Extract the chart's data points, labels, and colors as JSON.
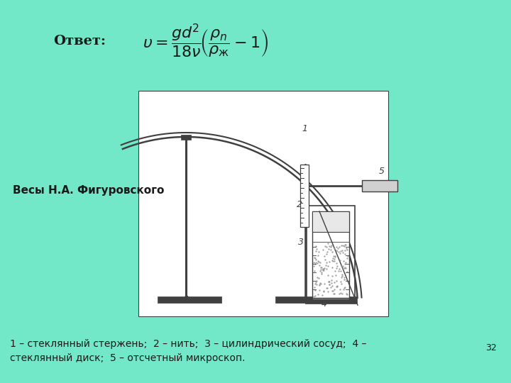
{
  "bg_color": "#72e8c8",
  "title_text": "Ответ:",
  "label_left": "Весы Н.А. Фигуровского",
  "caption_line1": "1 – стеклянный стержень;  2 – нить;  3 – цилиндрический сосуд;  4 –",
  "caption_line2": "стеклянный диск;  5 – отсчетный микроскоп.",
  "page_number": "32",
  "diagram_bg": "#ffffff",
  "text_color": "#1a1a1a",
  "dc": "#404040"
}
